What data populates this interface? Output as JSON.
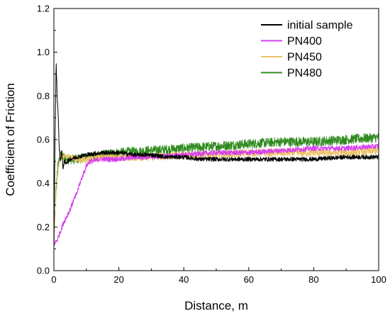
{
  "chart_data": {
    "type": "line",
    "xlabel": "Distance, m",
    "ylabel": "Coefficient of Friction",
    "xlim": [
      0,
      100
    ],
    "ylim": [
      0.0,
      1.2
    ],
    "x_ticks": [
      0,
      20,
      40,
      60,
      80,
      100
    ],
    "y_ticks": [
      0.0,
      0.2,
      0.4,
      0.6,
      0.8,
      1.0,
      1.2
    ],
    "y_tick_labels": [
      "0.0",
      "0.2",
      "0.4",
      "0.6",
      "0.8",
      "1.0",
      "1.2"
    ],
    "grid": false,
    "legend_position": "top-right",
    "series": [
      {
        "name": "initial sample",
        "color": "#000000",
        "noise": 0.01,
        "x": [
          0,
          0.3,
          0.7,
          1.0,
          1.3,
          1.6,
          2.0,
          2.4,
          2.8,
          3.2,
          3.6,
          4,
          5,
          7,
          10,
          15,
          20,
          25,
          30,
          35,
          40,
          45,
          50,
          55,
          60,
          70,
          80,
          90,
          100
        ],
        "y": [
          0.12,
          0.55,
          0.95,
          0.8,
          0.72,
          0.58,
          0.5,
          0.55,
          0.47,
          0.5,
          0.49,
          0.5,
          0.51,
          0.52,
          0.53,
          0.54,
          0.54,
          0.53,
          0.53,
          0.52,
          0.52,
          0.51,
          0.51,
          0.51,
          0.51,
          0.51,
          0.51,
          0.52,
          0.52
        ]
      },
      {
        "name": "PN400",
        "color": "#d63ff0",
        "noise": 0.012,
        "x": [
          0,
          1,
          2,
          3,
          4,
          5,
          6,
          7,
          8,
          9,
          10,
          11,
          12,
          14,
          16,
          20,
          25,
          30,
          40,
          50,
          60,
          70,
          80,
          90,
          100
        ],
        "y": [
          0.12,
          0.14,
          0.18,
          0.22,
          0.25,
          0.28,
          0.32,
          0.35,
          0.4,
          0.44,
          0.48,
          0.5,
          0.5,
          0.51,
          0.51,
          0.51,
          0.52,
          0.52,
          0.53,
          0.54,
          0.54,
          0.55,
          0.56,
          0.56,
          0.57
        ]
      },
      {
        "name": "PN450",
        "color": "#eec266",
        "noise": 0.018,
        "x": [
          0,
          0.5,
          1,
          1.5,
          2,
          3,
          4,
          5,
          7,
          10,
          15,
          20,
          30,
          40,
          50,
          60,
          70,
          80,
          90,
          100
        ],
        "y": [
          0.12,
          0.3,
          0.42,
          0.48,
          0.53,
          0.52,
          0.52,
          0.52,
          0.51,
          0.51,
          0.52,
          0.52,
          0.52,
          0.53,
          0.53,
          0.54,
          0.54,
          0.54,
          0.54,
          0.55
        ]
      },
      {
        "name": "PN480",
        "color": "#2f8a1e",
        "noise": 0.022,
        "x": [
          0,
          0.5,
          1,
          1.5,
          2,
          3,
          4,
          5,
          7,
          10,
          15,
          20,
          30,
          40,
          50,
          60,
          70,
          80,
          90,
          100
        ],
        "y": [
          0.12,
          0.32,
          0.45,
          0.5,
          0.53,
          0.52,
          0.51,
          0.51,
          0.51,
          0.52,
          0.53,
          0.54,
          0.55,
          0.56,
          0.57,
          0.58,
          0.59,
          0.59,
          0.6,
          0.61
        ]
      }
    ]
  }
}
